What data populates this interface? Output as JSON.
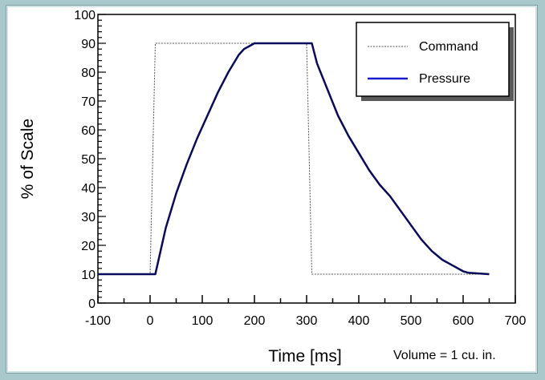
{
  "chart_data": {
    "type": "line",
    "xlabel": "Time [ms]",
    "ylabel": "% of Scale",
    "annotation": "Volume = 1 cu. in.",
    "xlim": [
      -100,
      700
    ],
    "ylim": [
      0,
      100
    ],
    "x_ticks": [
      -100,
      0,
      100,
      200,
      300,
      400,
      500,
      600,
      700
    ],
    "y_ticks": [
      0,
      10,
      20,
      30,
      40,
      50,
      60,
      70,
      80,
      90,
      100
    ],
    "grid": false,
    "legend_position": "top-right",
    "series": [
      {
        "name": "Command",
        "color": "#555555",
        "style": "dotted",
        "x": [
          -100,
          0,
          10,
          300,
          310,
          650
        ],
        "y": [
          10,
          10,
          90,
          90,
          10,
          10
        ]
      },
      {
        "name": "Pressure",
        "color": "#0a0a5a",
        "style": "solid",
        "x": [
          -100,
          0,
          10,
          20,
          30,
          50,
          70,
          90,
          110,
          130,
          150,
          170,
          180,
          190,
          200,
          210,
          300,
          310,
          320,
          340,
          360,
          380,
          400,
          420,
          440,
          460,
          480,
          500,
          520,
          540,
          560,
          580,
          600,
          610,
          650
        ],
        "y": [
          10,
          10,
          10,
          18,
          26,
          38,
          48,
          57,
          65,
          73,
          80,
          86,
          88,
          89,
          90,
          90,
          90,
          90,
          83,
          74,
          65,
          58,
          52,
          46,
          41,
          37,
          32,
          27,
          22,
          18,
          15,
          13,
          11,
          10.5,
          10
        ]
      }
    ]
  }
}
